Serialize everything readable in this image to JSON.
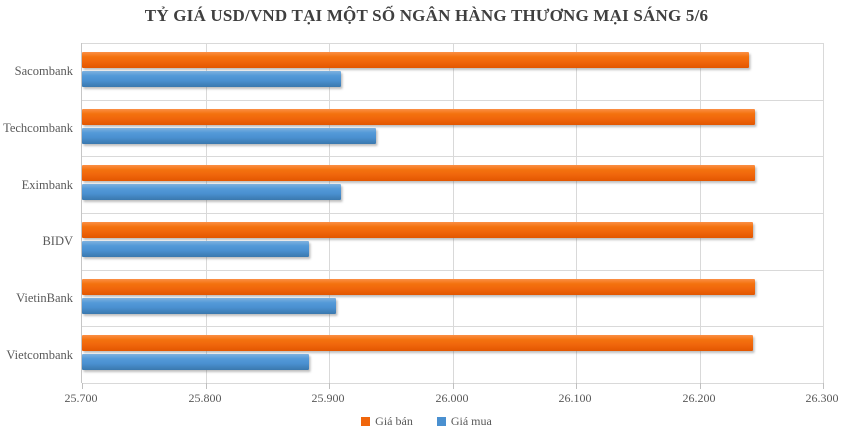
{
  "chart_data": {
    "type": "bar",
    "orientation": "horizontal",
    "title": "TỶ GIÁ USD/VND TẠI MỘT SỐ NGÂN HÀNG THƯƠNG MẠI SÁNG 5/6",
    "categories": [
      "Sacombank",
      "Techcombank",
      "Eximbank",
      "BIDV",
      "VietinBank",
      "Vietcombank"
    ],
    "series": [
      {
        "name": "Giá bán",
        "color": "#f0660c",
        "values": [
          26240,
          26245,
          26245,
          26243,
          26245,
          26243
        ]
      },
      {
        "name": "Giá mua",
        "color": "#4a90d0",
        "values": [
          25910,
          25938,
          25910,
          25884,
          25906,
          25884
        ]
      }
    ],
    "xlim": [
      25700,
      26300
    ],
    "x_tick_labels": [
      "25.700",
      "25.800",
      "25.900",
      "26.000",
      "26.100",
      "26.200",
      "26.300"
    ],
    "grid": true,
    "legend_position": "bottom"
  },
  "colors": {
    "title_text": "#3f3f3f",
    "axis_text": "#595959",
    "gridline": "#d9d9d9",
    "axis_line": "#c6c6c6",
    "bar_sell": "#f0660c",
    "bar_buy": "#4a90d0"
  }
}
